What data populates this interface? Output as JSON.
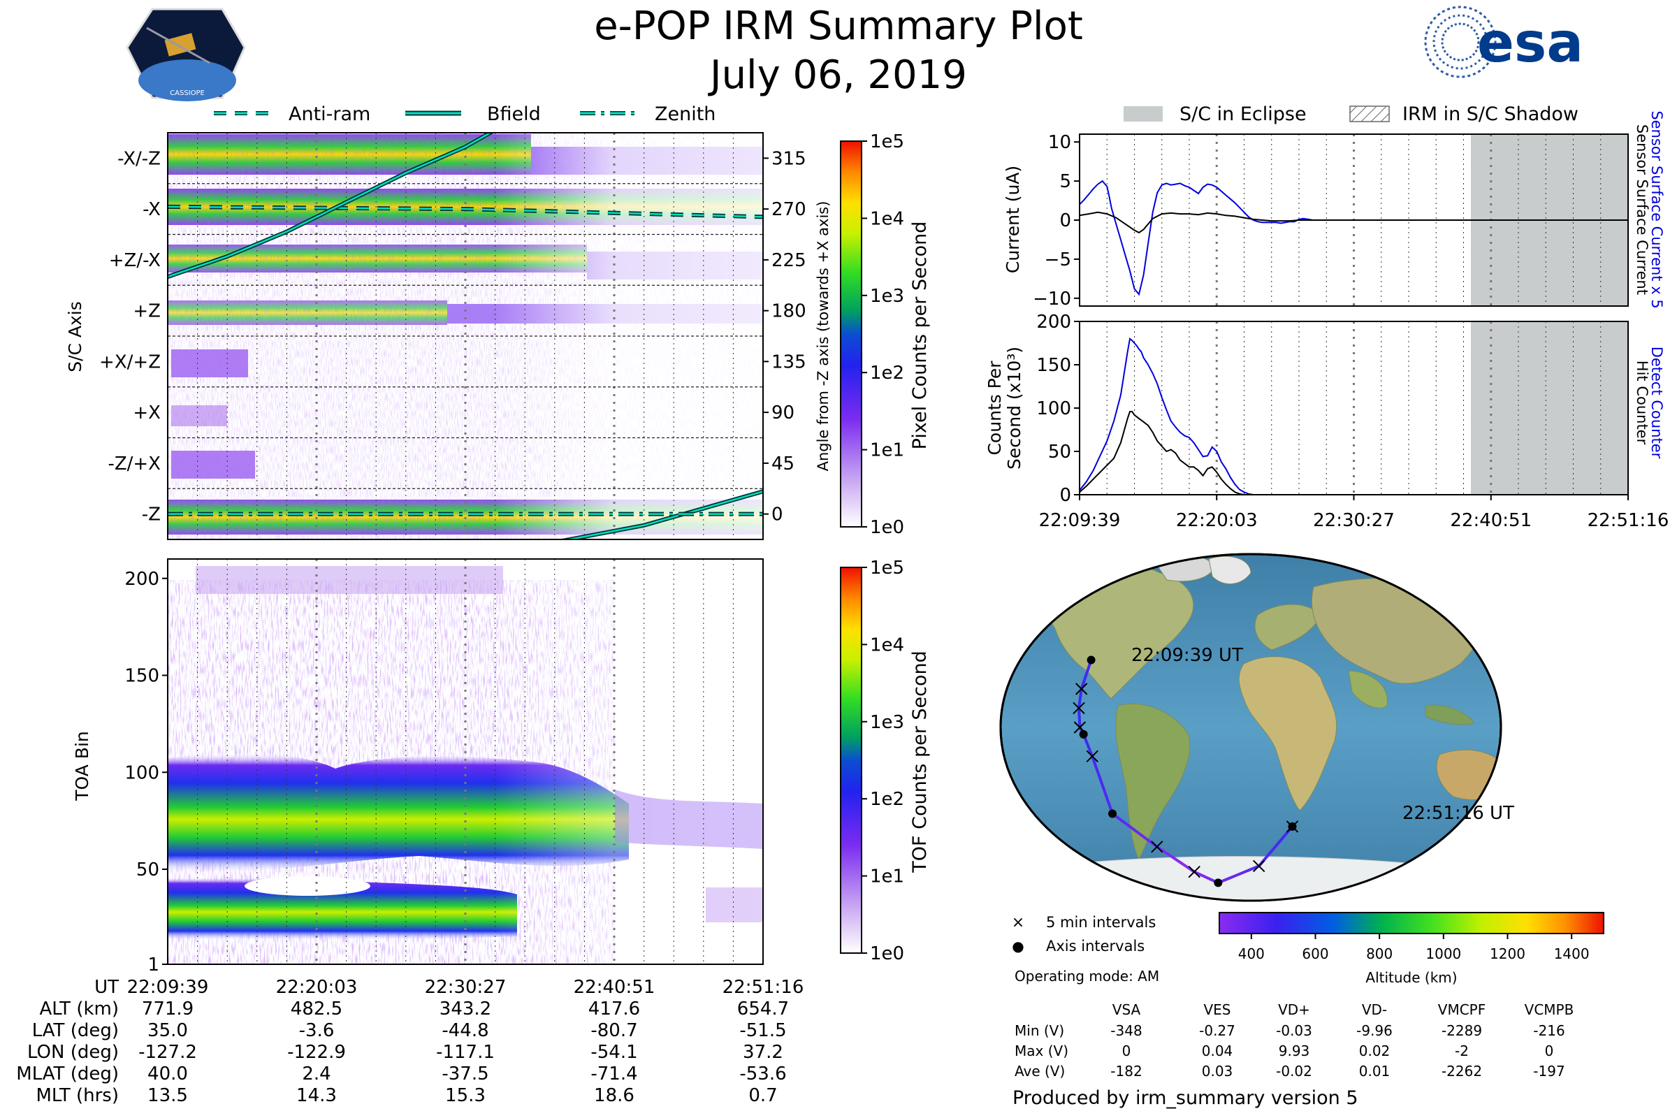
{
  "header": {
    "title": "e-POP IRM Summary Plot",
    "date": "July 06, 2019",
    "mission_badge": "CASSIOPE",
    "agency_logo": "esa"
  },
  "colors": {
    "axis": "#000000",
    "grid": "#555555",
    "current_sensor": "#0000dd",
    "current_total": "#000000",
    "eclipse": "#c8cccc",
    "track_marker": "#000000",
    "mode_line": "#003333",
    "mode_line_fill": "#00e0c0"
  },
  "time_axis": {
    "label": "UT",
    "ticks": [
      "22:09:39",
      "22:20:03",
      "22:30:27",
      "22:40:51",
      "22:51:16"
    ],
    "minor_lines": 20,
    "axis_lines_at": [
      1,
      2,
      3
    ]
  },
  "top_legend": [
    {
      "label": "Anti-ram",
      "style": "dashed"
    },
    {
      "label": "Bfield",
      "style": "solid"
    },
    {
      "label": "Zenith",
      "style": "dashdot"
    }
  ],
  "chart_data": [
    {
      "type": "heatmap",
      "name": "irm_pixel_panel",
      "ylabel": "S/C Axis",
      "ylabel_right": "Angle from -Z axis (towards +X axis)",
      "row_labels": [
        "-X/-Z",
        "-X",
        "+Z/-X",
        "+Z",
        "+X/+Z",
        "+X",
        "-Z/+X",
        "-Z"
      ],
      "angle_ticks": [
        "315",
        "270",
        "225",
        "180",
        "135",
        "90",
        "45",
        "0"
      ],
      "colorbar": {
        "label": "Pixel Counts per Second",
        "scale": "log",
        "ticks": [
          "1e5",
          "1e4",
          "1e3",
          "1e2",
          "1e1",
          "1e0"
        ]
      },
      "series": [
        {
          "name": "Anti-ram",
          "x_fraction": [
            0,
            0.5,
            1
          ],
          "angle_deg": [
            272,
            270,
            263
          ]
        },
        {
          "name": "Bfield",
          "x_fraction": [
            0,
            0.1,
            0.2,
            0.3,
            0.4,
            0.5,
            0.55,
            0.6,
            0.8,
            1.0
          ],
          "angle_deg": [
            210,
            228,
            250,
            276,
            302,
            325,
            340,
            -30,
            -10,
            20
          ]
        },
        {
          "name": "Zenith",
          "x_fraction": [
            0,
            1
          ],
          "angle_deg": [
            0,
            0
          ]
        }
      ]
    },
    {
      "type": "heatmap",
      "name": "toa_panel",
      "ylabel": "TOA Bin",
      "y_ticks": [
        "200",
        "150",
        "100",
        "50",
        "1"
      ],
      "ylim": [
        1,
        210
      ],
      "colorbar": {
        "label": "TOF Counts per Second",
        "scale": "log",
        "ticks": [
          "1e5",
          "1e4",
          "1e3",
          "1e2",
          "1e1",
          "1e0"
        ]
      }
    },
    {
      "type": "line",
      "name": "current_panel",
      "ylabel": "Current (uA)",
      "ylabel_right_primary": "Sensor Surface Current x 5",
      "ylabel_right_secondary": "Sensor Surface Current",
      "y_ticks": [
        "10",
        "5",
        "0",
        "−5",
        "−10"
      ],
      "ylim": [
        -11,
        11
      ],
      "series": [
        {
          "name": "Sensor Surface Current x 5",
          "x_minutes": [
            0,
            2,
            4,
            6,
            8,
            10,
            12,
            13,
            14,
            16,
            18,
            20,
            22,
            24,
            26,
            28,
            30,
            32,
            34,
            36,
            38,
            40,
            42,
            44,
            46,
            48,
            50,
            52,
            54,
            56,
            58,
            60,
            62,
            64,
            66,
            68,
            70,
            72,
            74,
            76,
            78,
            80,
            82,
            84,
            86,
            88,
            90,
            92,
            94,
            96,
            98,
            100,
            102,
            104,
            106,
            108,
            110,
            112,
            114,
            116,
            118,
            120,
            122,
            124,
            126,
            128,
            130,
            132,
            134,
            136,
            138,
            140,
            142,
            144,
            146,
            148,
            150,
            152,
            154,
            156,
            158,
            160,
            162,
            164,
            166,
            168,
            170,
            172,
            174,
            176,
            178,
            180,
            182,
            184,
            186,
            188,
            190,
            192,
            194,
            196,
            198,
            200,
            202,
            204,
            206,
            208,
            210,
            212,
            214,
            216,
            218,
            220,
            222,
            224,
            226,
            228,
            230,
            232,
            234,
            236,
            238,
            240
          ],
          "y": [
            2.0,
            2.6,
            3.3,
            4.0,
            4.6,
            5.0,
            4.3,
            3.0,
            1.5,
            -0.5,
            -2.5,
            -4.5,
            -6.5,
            -8.8,
            -9.5,
            -7.0,
            -3.0,
            1.0,
            3.5,
            4.5,
            4.7,
            4.5,
            4.6,
            4.7,
            4.4,
            4.2,
            3.8,
            3.4,
            4.2,
            4.6,
            4.5,
            4.2,
            3.7,
            3.2,
            2.7,
            2.2,
            1.6,
            1.0,
            0.4,
            0.0,
            -0.2,
            -0.3,
            -0.3,
            -0.3,
            -0.3,
            -0.4,
            -0.3,
            -0.2,
            -0.2,
            0.1,
            0.2,
            0.1,
            0.0,
            0.0,
            0.0,
            0.0,
            0.0,
            0.0,
            0.0,
            0.0,
            0.0,
            0.0,
            0.0,
            0.0,
            0.0,
            0.0,
            0.0,
            0.0,
            0.0,
            0.0,
            0.0,
            0.0,
            0.0,
            0.0,
            0.0,
            0.0,
            0.0,
            0.0,
            0.0,
            0.0,
            0.0,
            0.0,
            0.0,
            0.0,
            0.0,
            0.0,
            0.0,
            0.0,
            0.0,
            0.0,
            0.0,
            0.0,
            0.0,
            0.0,
            0.0,
            0.0,
            0.0,
            0.0,
            0.0,
            0.0,
            0.0,
            0.0,
            0.0,
            0.0,
            0.0,
            0.0,
            0.0,
            0.0,
            0.0,
            0.0,
            0.0,
            0.0,
            0.0,
            0.0,
            0.0,
            0.0,
            0.0,
            0.0,
            0.0,
            0.0,
            0.0,
            0.0
          ]
        },
        {
          "name": "Sensor Surface Current",
          "x_minutes": [
            0,
            4,
            8,
            12,
            16,
            20,
            24,
            26,
            28,
            32,
            36,
            40,
            44,
            48,
            52,
            56,
            60,
            64,
            68,
            72,
            76,
            80,
            84,
            88,
            92,
            96,
            100,
            120,
            160,
            200,
            240
          ],
          "y": [
            0.6,
            0.8,
            1.0,
            0.8,
            0.3,
            -0.5,
            -1.3,
            -1.6,
            -1.2,
            0.2,
            0.8,
            0.9,
            0.8,
            0.8,
            0.7,
            0.9,
            0.8,
            0.6,
            0.5,
            0.3,
            0.1,
            0.0,
            -0.1,
            -0.1,
            -0.1,
            0.0,
            0.0,
            0.0,
            0.0,
            0.0,
            0.0
          ]
        }
      ]
    },
    {
      "type": "line",
      "name": "counts_panel",
      "ylabel": "Counts Per",
      "ylabel2": "Second (x10³)",
      "ylabel_right_primary": "Detect Counter",
      "ylabel_right_secondary": "Hit Counter",
      "y_ticks": [
        "200",
        "150",
        "100",
        "50",
        "0"
      ],
      "ylim": [
        0,
        200
      ],
      "x_fraction_time": [
        0,
        0.25,
        0.5,
        0.75,
        1.0
      ],
      "series": [
        {
          "name": "Detect Counter",
          "x_minutes": [
            0,
            3,
            6,
            9,
            12,
            15,
            18,
            21,
            22,
            23,
            24,
            25,
            26,
            27,
            28,
            30,
            32,
            34,
            36,
            38,
            40,
            42,
            44,
            46,
            48,
            50,
            52,
            54,
            56,
            58,
            60,
            62,
            64,
            66,
            68,
            70,
            72,
            74,
            76,
            78,
            80,
            82,
            85,
            90,
            100,
            120,
            160,
            200,
            240
          ],
          "y": [
            5,
            15,
            28,
            45,
            62,
            85,
            115,
            165,
            180,
            178,
            175,
            172,
            168,
            165,
            158,
            150,
            140,
            128,
            112,
            98,
            85,
            78,
            72,
            68,
            66,
            60,
            52,
            44,
            45,
            55,
            50,
            38,
            30,
            20,
            12,
            6,
            3,
            1,
            0,
            0,
            0,
            0,
            0,
            0,
            0,
            0,
            0,
            0,
            0
          ]
        },
        {
          "name": "Hit Counter",
          "x_minutes": [
            0,
            3,
            6,
            9,
            12,
            15,
            18,
            21,
            22,
            23,
            24,
            26,
            28,
            30,
            32,
            34,
            36,
            38,
            40,
            42,
            44,
            46,
            48,
            50,
            52,
            54,
            56,
            58,
            60,
            62,
            64,
            66,
            68,
            70,
            72,
            74,
            76,
            80,
            90,
            120,
            160,
            200,
            240
          ],
          "y": [
            3,
            10,
            18,
            26,
            34,
            42,
            60,
            88,
            96,
            96,
            92,
            88,
            84,
            80,
            72,
            62,
            56,
            50,
            52,
            48,
            40,
            36,
            32,
            32,
            28,
            22,
            30,
            32,
            26,
            18,
            12,
            7,
            3,
            1,
            0,
            0,
            0,
            0,
            0,
            0,
            0,
            0,
            0
          ]
        }
      ]
    },
    {
      "type": "scatter",
      "name": "ground_track_map",
      "start_label": "22:09:39 UT",
      "end_label": "22:51:16 UT",
      "legend": [
        {
          "marker": "×",
          "label": "5 min intervals"
        },
        {
          "marker": "●",
          "label": "Axis intervals"
        }
      ],
      "track_lon": [
        -127.2,
        -127.5,
        -127.0,
        -125.5,
        -122.9,
        -118.0,
        -117.1,
        -95.0,
        -75.0,
        -54.1,
        10.0,
        37.2
      ],
      "track_lat": [
        35.0,
        20.0,
        10.0,
        0.0,
        -3.6,
        -15.0,
        -44.8,
        -62.0,
        -75.0,
        -80.7,
        -72.0,
        -51.5
      ],
      "colorbar": {
        "label": "Altitude (km)",
        "ticks": [
          "400",
          "600",
          "800",
          "1000",
          "1200",
          "1400"
        ],
        "range": [
          300,
          1500
        ]
      }
    }
  ],
  "ephemeris": {
    "rows": [
      {
        "label": "UT",
        "values": [
          "22:09:39",
          "22:20:03",
          "22:30:27",
          "22:40:51",
          "22:51:16"
        ]
      },
      {
        "label": "ALT (km)",
        "values": [
          "771.9",
          "482.5",
          "343.2",
          "417.6",
          "654.7"
        ]
      },
      {
        "label": "LAT (deg)",
        "values": [
          "35.0",
          "-3.6",
          "-44.8",
          "-80.7",
          "-51.5"
        ]
      },
      {
        "label": "LON (deg)",
        "values": [
          "-127.2",
          "-122.9",
          "-117.1",
          "-54.1",
          "37.2"
        ]
      },
      {
        "label": "MLAT (deg)",
        "values": [
          "40.0",
          "2.4",
          "-37.5",
          "-71.4",
          "-53.6"
        ]
      },
      {
        "label": "MLT (hrs)",
        "values": [
          "13.5",
          "14.3",
          "15.3",
          "18.6",
          "0.7"
        ]
      }
    ]
  },
  "right_legend": [
    {
      "label": "S/C in Eclipse",
      "style": "fill"
    },
    {
      "label": "IRM in S/C Shadow",
      "style": "hatch"
    }
  ],
  "operating_mode": "Operating mode: AM",
  "voltage_table": {
    "columns": [
      "VSA",
      "VES",
      "VD+",
      "VD-",
      "VMCPF",
      "VCMPB"
    ],
    "rows": [
      {
        "label": "Min (V)",
        "values": [
          "-348",
          "-0.27",
          "-0.03",
          "-9.96",
          "-2289",
          "-216"
        ]
      },
      {
        "label": "Max (V)",
        "values": [
          "0",
          "0.04",
          "9.93",
          "0.02",
          "-2",
          "0"
        ]
      },
      {
        "label": "Ave (V)",
        "values": [
          "-182",
          "0.03",
          "-0.02",
          "0.01",
          "-2262",
          "-197"
        ]
      }
    ]
  },
  "footer": "Produced by irm_summary version 5"
}
